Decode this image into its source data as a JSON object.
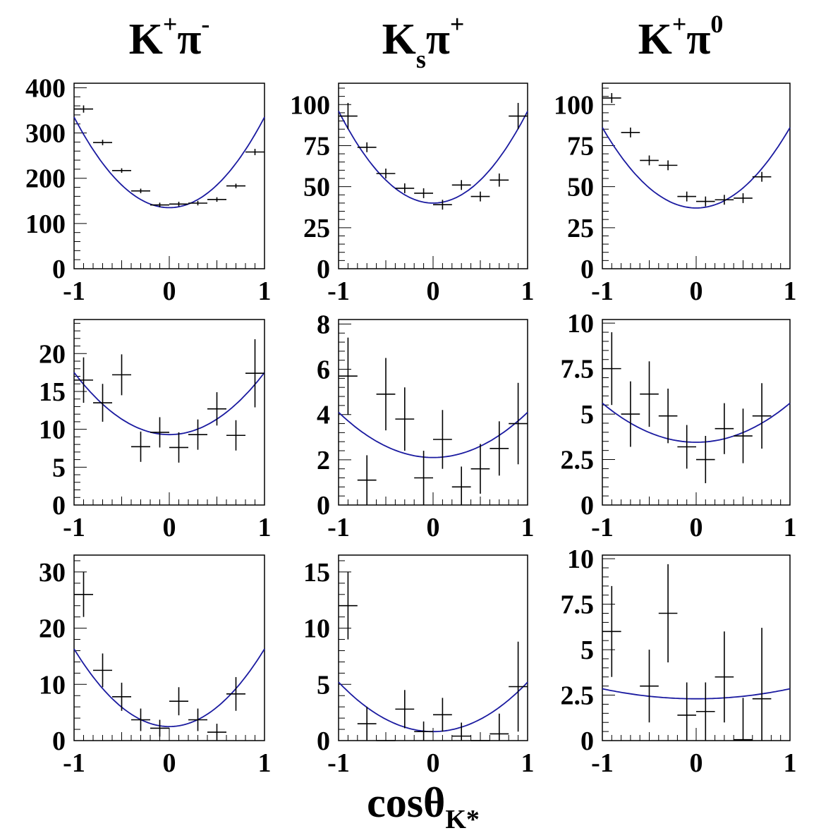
{
  "column_titles": [
    {
      "main": "K",
      "sup": "+",
      "main2": "π",
      "sup2": "-",
      "sub": ""
    },
    {
      "main": "K",
      "sup": "",
      "main2": "π",
      "sup2": "+",
      "sub": "s"
    },
    {
      "main": "K",
      "sup": "+",
      "main2": "π",
      "sup2": "0",
      "sub": ""
    }
  ],
  "x_axis_title": {
    "main": "cosθ",
    "sub": "K*"
  },
  "colors": {
    "fit": "#1a1aa0",
    "data": "#000000",
    "frame": "#000000"
  },
  "chart_data": [
    {
      "type": "scatter",
      "title": "K+π-",
      "row": 0,
      "col": 0,
      "xlim": [
        -1,
        1
      ],
      "ylim": [
        0,
        410
      ],
      "x_ticks": [
        "-1",
        "0",
        "1"
      ],
      "y_ticks": [
        "0",
        "100",
        "200",
        "300",
        "400"
      ],
      "y_tick_values": [
        0,
        100,
        200,
        300,
        400
      ],
      "points": [
        {
          "x": -0.9,
          "y": 353,
          "yerr": 8
        },
        {
          "x": -0.7,
          "y": 279,
          "yerr": 6
        },
        {
          "x": -0.5,
          "y": 217,
          "yerr": 5
        },
        {
          "x": -0.3,
          "y": 172,
          "yerr": 5
        },
        {
          "x": -0.1,
          "y": 141,
          "yerr": 5
        },
        {
          "x": 0.1,
          "y": 143,
          "yerr": 5
        },
        {
          "x": 0.3,
          "y": 145,
          "yerr": 5
        },
        {
          "x": 0.5,
          "y": 153,
          "yerr": 5
        },
        {
          "x": 0.7,
          "y": 183,
          "yerr": 5
        },
        {
          "x": 0.9,
          "y": 258,
          "yerr": 7
        }
      ],
      "fit": {
        "a": 135,
        "b": 200
      }
    },
    {
      "type": "scatter",
      "title": "Ksπ+",
      "row": 0,
      "col": 1,
      "xlim": [
        -1,
        1
      ],
      "ylim": [
        0,
        113
      ],
      "x_ticks": [
        "-1",
        "0",
        "1"
      ],
      "y_ticks": [
        "0",
        "25",
        "50",
        "75",
        "100"
      ],
      "y_tick_values": [
        0,
        25,
        50,
        75,
        100
      ],
      "points": [
        {
          "x": -0.9,
          "y": 93,
          "yerr": 8
        },
        {
          "x": -0.7,
          "y": 74,
          "yerr": 3
        },
        {
          "x": -0.5,
          "y": 58,
          "yerr": 3
        },
        {
          "x": -0.3,
          "y": 49,
          "yerr": 3
        },
        {
          "x": -0.1,
          "y": 46,
          "yerr": 3
        },
        {
          "x": 0.1,
          "y": 39,
          "yerr": 3
        },
        {
          "x": 0.3,
          "y": 51,
          "yerr": 3
        },
        {
          "x": 0.5,
          "y": 44,
          "yerr": 3
        },
        {
          "x": 0.7,
          "y": 54,
          "yerr": 4
        },
        {
          "x": 0.9,
          "y": 93,
          "yerr": 8
        }
      ],
      "fit": {
        "a": 40,
        "b": 56
      }
    },
    {
      "type": "scatter",
      "title": "K+π0",
      "row": 0,
      "col": 2,
      "xlim": [
        -1,
        1
      ],
      "ylim": [
        0,
        113
      ],
      "x_ticks": [
        "-1",
        "0",
        "1"
      ],
      "y_ticks": [
        "0",
        "25",
        "50",
        "75",
        "100"
      ],
      "y_tick_values": [
        0,
        25,
        50,
        75,
        100
      ],
      "points": [
        {
          "x": -0.9,
          "y": 104,
          "yerr": 3
        },
        {
          "x": -0.7,
          "y": 83,
          "yerr": 3
        },
        {
          "x": -0.5,
          "y": 66,
          "yerr": 3
        },
        {
          "x": -0.3,
          "y": 63,
          "yerr": 3
        },
        {
          "x": -0.1,
          "y": 44,
          "yerr": 3
        },
        {
          "x": 0.1,
          "y": 41,
          "yerr": 3
        },
        {
          "x": 0.3,
          "y": 42,
          "yerr": 3
        },
        {
          "x": 0.5,
          "y": 43,
          "yerr": 3
        },
        {
          "x": 0.7,
          "y": 56,
          "yerr": 3
        }
      ],
      "fit": {
        "a": 37,
        "b": 49
      }
    },
    {
      "type": "scatter",
      "row": 1,
      "col": 0,
      "xlim": [
        -1,
        1
      ],
      "ylim": [
        0,
        24.5
      ],
      "x_ticks": [
        "-1",
        "0",
        "1"
      ],
      "y_ticks": [
        "0",
        "5",
        "10",
        "15",
        "20"
      ],
      "y_tick_values": [
        0,
        5,
        10,
        15,
        20
      ],
      "points": [
        {
          "x": -0.9,
          "y": 16.5,
          "yerr": 3.0
        },
        {
          "x": -0.7,
          "y": 13.5,
          "yerr": 2.5
        },
        {
          "x": -0.5,
          "y": 17.2,
          "yerr": 2.7
        },
        {
          "x": -0.3,
          "y": 7.7,
          "yerr": 2.0
        },
        {
          "x": -0.1,
          "y": 9.6,
          "yerr": 2.0
        },
        {
          "x": 0.1,
          "y": 7.6,
          "yerr": 2.0
        },
        {
          "x": 0.3,
          "y": 9.3,
          "yerr": 2.0
        },
        {
          "x": 0.5,
          "y": 12.7,
          "yerr": 2.2
        },
        {
          "x": 0.7,
          "y": 9.2,
          "yerr": 2.0
        },
        {
          "x": 0.9,
          "y": 17.4,
          "yerr": 4.5
        }
      ],
      "fit": {
        "a": 9.3,
        "b": 8.2
      }
    },
    {
      "type": "scatter",
      "row": 1,
      "col": 1,
      "xlim": [
        -1,
        1
      ],
      "ylim": [
        0,
        8.2
      ],
      "x_ticks": [
        "-1",
        "0",
        "1"
      ],
      "y_ticks": [
        "0",
        "2",
        "4",
        "6",
        "8"
      ],
      "y_tick_values": [
        0,
        2,
        4,
        6,
        8
      ],
      "points": [
        {
          "x": -0.9,
          "y": 5.7,
          "yerr": 1.7
        },
        {
          "x": -0.7,
          "y": 1.1,
          "yerr": 1.1
        },
        {
          "x": -0.5,
          "y": 4.9,
          "yerr": 1.6
        },
        {
          "x": -0.3,
          "y": 3.8,
          "yerr": 1.4
        },
        {
          "x": -0.1,
          "y": 1.2,
          "yerr": 1.2
        },
        {
          "x": 0.1,
          "y": 2.9,
          "yerr": 1.3
        },
        {
          "x": 0.3,
          "y": 0.8,
          "yerr": 0.9
        },
        {
          "x": 0.5,
          "y": 1.6,
          "yerr": 1.1
        },
        {
          "x": 0.7,
          "y": 2.5,
          "yerr": 1.2
        },
        {
          "x": 0.9,
          "y": 3.6,
          "yerr": 1.8
        }
      ],
      "fit": {
        "a": 2.1,
        "b": 2.0
      }
    },
    {
      "type": "scatter",
      "row": 1,
      "col": 2,
      "xlim": [
        -1,
        1
      ],
      "ylim": [
        0,
        10.2
      ],
      "x_ticks": [
        "-1",
        "0",
        "1"
      ],
      "y_ticks": [
        "0",
        "2.5",
        "5",
        "7.5",
        "10"
      ],
      "y_tick_values": [
        0,
        2.5,
        5,
        7.5,
        10
      ],
      "points": [
        {
          "x": -0.9,
          "y": 7.5,
          "yerr": 2.0
        },
        {
          "x": -0.7,
          "y": 5.0,
          "yerr": 1.8
        },
        {
          "x": -0.5,
          "y": 6.1,
          "yerr": 1.8
        },
        {
          "x": -0.3,
          "y": 4.9,
          "yerr": 1.5
        },
        {
          "x": -0.1,
          "y": 3.2,
          "yerr": 1.2
        },
        {
          "x": 0.1,
          "y": 2.5,
          "yerr": 1.3
        },
        {
          "x": 0.3,
          "y": 4.2,
          "yerr": 1.4
        },
        {
          "x": 0.5,
          "y": 3.8,
          "yerr": 1.5
        },
        {
          "x": 0.7,
          "y": 4.9,
          "yerr": 1.8
        }
      ],
      "fit": {
        "a": 3.45,
        "b": 2.15
      }
    },
    {
      "type": "scatter",
      "row": 2,
      "col": 0,
      "xlim": [
        -1,
        1
      ],
      "ylim": [
        0,
        33
      ],
      "x_ticks": [
        "-1",
        "0",
        "1"
      ],
      "y_ticks": [
        "0",
        "10",
        "20",
        "30"
      ],
      "y_tick_values": [
        0,
        10,
        20,
        30
      ],
      "points": [
        {
          "x": -0.9,
          "y": 26,
          "yerr": 4
        },
        {
          "x": -0.7,
          "y": 12.5,
          "yerr": 3
        },
        {
          "x": -0.5,
          "y": 7.8,
          "yerr": 2.5
        },
        {
          "x": -0.3,
          "y": 3.7,
          "yerr": 2
        },
        {
          "x": -0.1,
          "y": 2.2,
          "yerr": 1.5
        },
        {
          "x": 0.1,
          "y": 7.0,
          "yerr": 2.5
        },
        {
          "x": 0.3,
          "y": 3.7,
          "yerr": 2
        },
        {
          "x": 0.5,
          "y": 1.5,
          "yerr": 1.5
        },
        {
          "x": 0.7,
          "y": 8.3,
          "yerr": 3
        }
      ],
      "fit": {
        "a": 2.5,
        "b": 13.8
      }
    },
    {
      "type": "scatter",
      "row": 2,
      "col": 1,
      "xlim": [
        -1,
        1
      ],
      "ylim": [
        0,
        16.5
      ],
      "x_ticks": [
        "-1",
        "0",
        "1"
      ],
      "y_ticks": [
        "0",
        "5",
        "10",
        "15"
      ],
      "y_tick_values": [
        0,
        5,
        10,
        15
      ],
      "points": [
        {
          "x": -0.9,
          "y": 12.0,
          "yerr": 3.0
        },
        {
          "x": -0.7,
          "y": 1.5,
          "yerr": 1.5
        },
        {
          "x": -0.5,
          "y": 0,
          "yerr": 0
        },
        {
          "x": -0.3,
          "y": 2.8,
          "yerr": 1.7
        },
        {
          "x": -0.1,
          "y": 0.8,
          "yerr": 0.9
        },
        {
          "x": 0.1,
          "y": 2.3,
          "yerr": 1.5
        },
        {
          "x": 0.3,
          "y": 0.4,
          "yerr": 1.2
        },
        {
          "x": 0.5,
          "y": 0,
          "yerr": 0
        },
        {
          "x": 0.7,
          "y": 0.6,
          "yerr": 1.8
        },
        {
          "x": 0.9,
          "y": 4.8,
          "yerr": 4.0
        }
      ],
      "fit": {
        "a": 0.8,
        "b": 4.4
      }
    },
    {
      "type": "scatter",
      "row": 2,
      "col": 2,
      "xlim": [
        -1,
        1
      ],
      "ylim": [
        0,
        10.2
      ],
      "x_ticks": [
        "-1",
        "0",
        "1"
      ],
      "y_ticks": [
        "0",
        "2.5",
        "5",
        "7.5",
        "10"
      ],
      "y_tick_values": [
        0,
        2.5,
        5,
        7.5,
        10
      ],
      "points": [
        {
          "x": -0.9,
          "y": 6.0,
          "yerr": 2.5
        },
        {
          "x": -0.5,
          "y": 3.0,
          "yerr": 2.0
        },
        {
          "x": -0.3,
          "y": 7.0,
          "yerr": 2.7
        },
        {
          "x": -0.1,
          "y": 1.4,
          "yerr": 1.8
        },
        {
          "x": 0.1,
          "y": 1.6,
          "yerr": 1.6
        },
        {
          "x": 0.3,
          "y": 3.5,
          "yerr": 2.5
        },
        {
          "x": 0.5,
          "y": 0.05,
          "yerr": 2.3
        },
        {
          "x": 0.7,
          "y": 2.3,
          "yerr": 3.9
        }
      ],
      "fit": {
        "a": 2.3,
        "b": 0.55
      }
    }
  ]
}
